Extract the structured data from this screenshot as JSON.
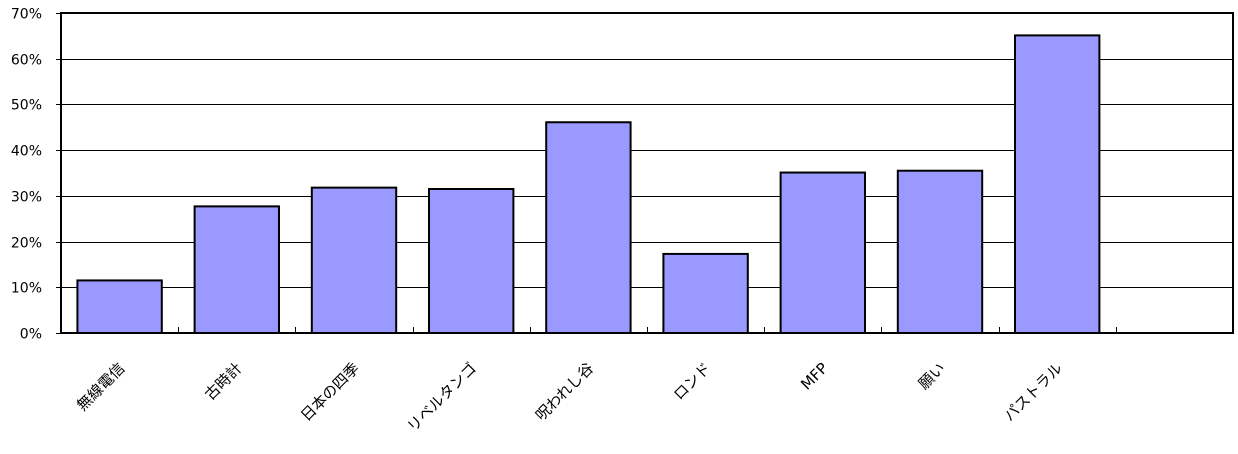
{
  "chart_data": {
    "type": "bar",
    "title": "",
    "xlabel": "",
    "ylabel": "",
    "categories": [
      "無線電信",
      "古時計",
      "日本の四季",
      "リベルタンゴ",
      "呪われし谷",
      "ロンド",
      "MFP",
      "願い",
      "パストラル"
    ],
    "values": [
      0.115,
      0.277,
      0.318,
      0.315,
      0.461,
      0.173,
      0.351,
      0.355,
      0.651
    ],
    "ylim": [
      0,
      0.7
    ],
    "yticks": [
      0,
      0.1,
      0.2,
      0.3,
      0.4,
      0.5,
      0.6,
      0.7
    ],
    "ytick_labels": [
      "0%",
      "10%",
      "20%",
      "30%",
      "40%",
      "50%",
      "60%",
      "70%"
    ],
    "slots": 10,
    "grid": true,
    "legend": "none",
    "bar_color": "#9999ff"
  }
}
